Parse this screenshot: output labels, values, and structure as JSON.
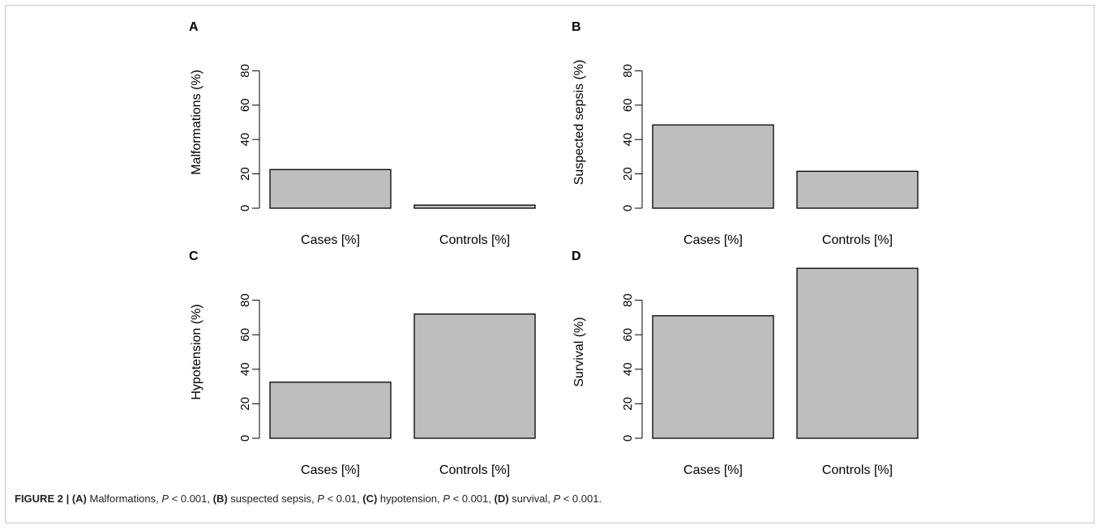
{
  "caption": {
    "figure_label": "FIGURE 2 |",
    "a_tag": "(A)",
    "a_text": " Malformations, ",
    "b_tag": "(B)",
    "b_text": " suspected sepsis, ",
    "c_tag": "(C)",
    "c_text": " hypotension, ",
    "d_tag": "(D)",
    "d_text": " survival, ",
    "p_symbol": "P",
    "a_p": " < 0.001, ",
    "b_p": " < 0.01, ",
    "c_p": " < 0.001, ",
    "d_p": " < 0.001."
  },
  "colors": {
    "bar_fill": "#bebebe",
    "bar_stroke": "#000000",
    "axis": "#000000"
  },
  "chart_data": [
    {
      "type": "bar",
      "panel_label": "A",
      "categories": [
        "Cases [%]",
        "Controls [%]"
      ],
      "values": [
        22.5,
        1.8
      ],
      "ylabel": "Malformations (%)",
      "yticks": [
        0,
        20,
        40,
        60,
        80
      ],
      "ylim": [
        0,
        100
      ]
    },
    {
      "type": "bar",
      "panel_label": "B",
      "categories": [
        "Cases [%]",
        "Controls [%]"
      ],
      "values": [
        48.5,
        21.5
      ],
      "ylabel": "Suspected sepsis (%)",
      "yticks": [
        0,
        20,
        40,
        60,
        80
      ],
      "ylim": [
        0,
        100
      ]
    },
    {
      "type": "bar",
      "panel_label": "C",
      "categories": [
        "Cases [%]",
        "Controls [%]"
      ],
      "values": [
        32.5,
        72
      ],
      "ylabel": "Hypotension (%)",
      "yticks": [
        0,
        20,
        40,
        60,
        80
      ],
      "ylim": [
        0,
        100
      ]
    },
    {
      "type": "bar",
      "panel_label": "D",
      "categories": [
        "Cases [%]",
        "Controls [%]"
      ],
      "values": [
        71,
        98.5
      ],
      "ylabel": "Survival (%)",
      "yticks": [
        0,
        20,
        40,
        60,
        80
      ],
      "ylim": [
        0,
        100
      ]
    }
  ]
}
